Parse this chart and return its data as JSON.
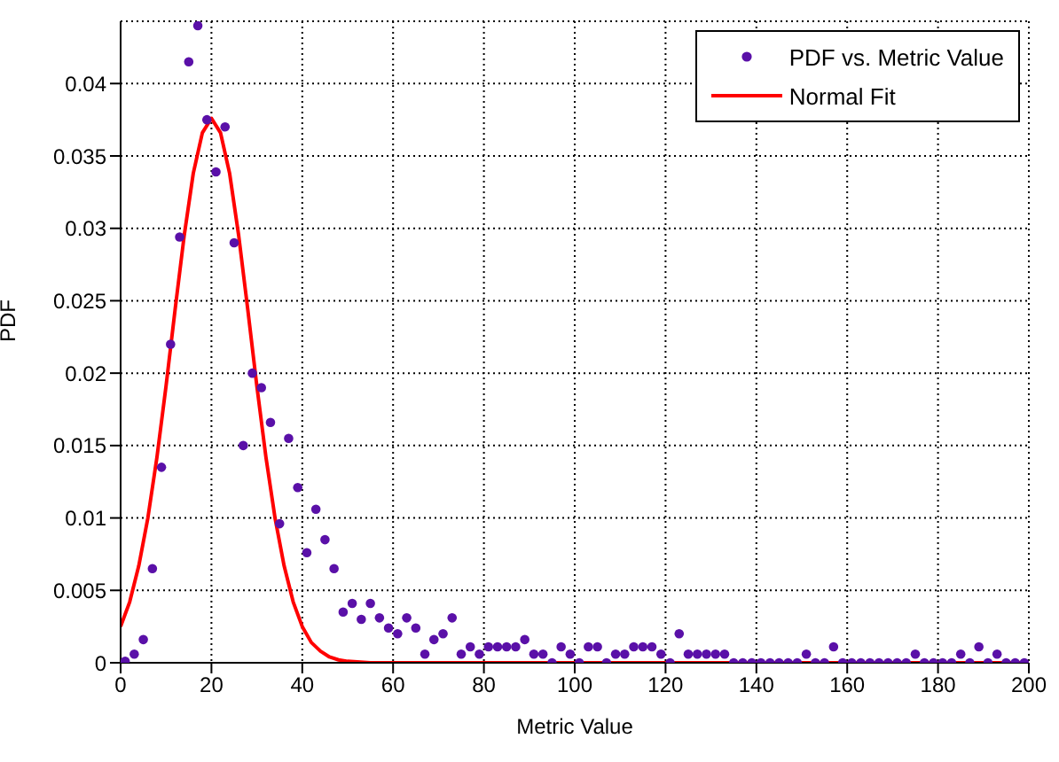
{
  "chart_data": {
    "type": "scatter",
    "xlabel": "Metric Value",
    "ylabel": "PDF",
    "xlim": [
      0,
      200
    ],
    "xticks": [
      0,
      20,
      40,
      60,
      80,
      100,
      120,
      140,
      160,
      180,
      200
    ],
    "ylim": [
      0,
      0.0443
    ],
    "yticks": [
      0,
      0.005,
      0.01,
      0.015,
      0.02,
      0.025,
      0.03,
      0.035,
      0.04
    ],
    "grid": true,
    "legend": "top right",
    "series": [
      {
        "name": "PDF vs. Metric Value",
        "marker": "circle",
        "color": "#5a10a8",
        "x": [
          1,
          3,
          5,
          7,
          9,
          11,
          13,
          15,
          17,
          19,
          21,
          23,
          25,
          27,
          29,
          31,
          33,
          35,
          37,
          39,
          41,
          43,
          45,
          47,
          49,
          51,
          53,
          55,
          57,
          59,
          61,
          63,
          65,
          67,
          69,
          71,
          73,
          75,
          77,
          79,
          81,
          83,
          85,
          87,
          89,
          91,
          93,
          95,
          97,
          99,
          101,
          103,
          105,
          107,
          109,
          111,
          113,
          115,
          117,
          119,
          121,
          123,
          125,
          127,
          129,
          131,
          133,
          135,
          137,
          139,
          141,
          143,
          145,
          147,
          149,
          151,
          153,
          155,
          157,
          159,
          161,
          163,
          165,
          167,
          169,
          171,
          173,
          175,
          177,
          179,
          181,
          183,
          185,
          187,
          189,
          191,
          193,
          195,
          197,
          199
        ],
        "values": [
          0.0001,
          0.0006,
          0.0016,
          0.0065,
          0.0135,
          0.022,
          0.0294,
          0.0415,
          0.044,
          0.0375,
          0.0339,
          0.037,
          0.029,
          0.015,
          0.02,
          0.019,
          0.0166,
          0.0096,
          0.0155,
          0.0121,
          0.0076,
          0.0106,
          0.0085,
          0.0065,
          0.0035,
          0.0041,
          0.003,
          0.0041,
          0.0031,
          0.0024,
          0.002,
          0.0031,
          0.0024,
          0.0006,
          0.0016,
          0.002,
          0.0031,
          0.0006,
          0.0011,
          0.0006,
          0.0011,
          0.0011,
          0.0011,
          0.0011,
          0.0016,
          0.0006,
          0.0006,
          0,
          0.0011,
          0.0006,
          0,
          0.0011,
          0.0011,
          0,
          0.0006,
          0.0006,
          0.0011,
          0.0011,
          0.0011,
          0.0006,
          0,
          0.002,
          0.0006,
          0.0006,
          0.0006,
          0.0006,
          0.0006,
          0,
          0,
          0,
          0,
          0,
          0,
          0,
          0,
          0.0006,
          0,
          0,
          0.0011,
          0,
          0,
          0,
          0,
          0,
          0,
          0,
          0,
          0.0006,
          0,
          0,
          0,
          0,
          0.0006,
          0,
          0.0011,
          0,
          0.0006,
          0,
          0,
          0
        ]
      },
      {
        "name": "Normal Fit",
        "type": "line",
        "marker": "none",
        "line_style": "solid",
        "color": "#ff0000",
        "x": [
          0,
          2,
          4,
          6,
          8,
          10,
          12,
          14,
          16,
          18,
          20,
          22,
          24,
          26,
          28,
          30,
          32,
          34,
          36,
          38,
          40,
          42,
          44,
          46,
          48,
          50,
          55,
          60,
          200
        ],
        "values": [
          0.0025,
          0.0042,
          0.0067,
          0.01,
          0.0142,
          0.0191,
          0.0244,
          0.0295,
          0.0338,
          0.0366,
          0.0376,
          0.0366,
          0.0338,
          0.0295,
          0.0244,
          0.0191,
          0.0142,
          0.01,
          0.0067,
          0.0042,
          0.0025,
          0.0014,
          0.0008,
          0.0004,
          0.0002,
          0.0001,
          0,
          0,
          0
        ]
      }
    ]
  }
}
